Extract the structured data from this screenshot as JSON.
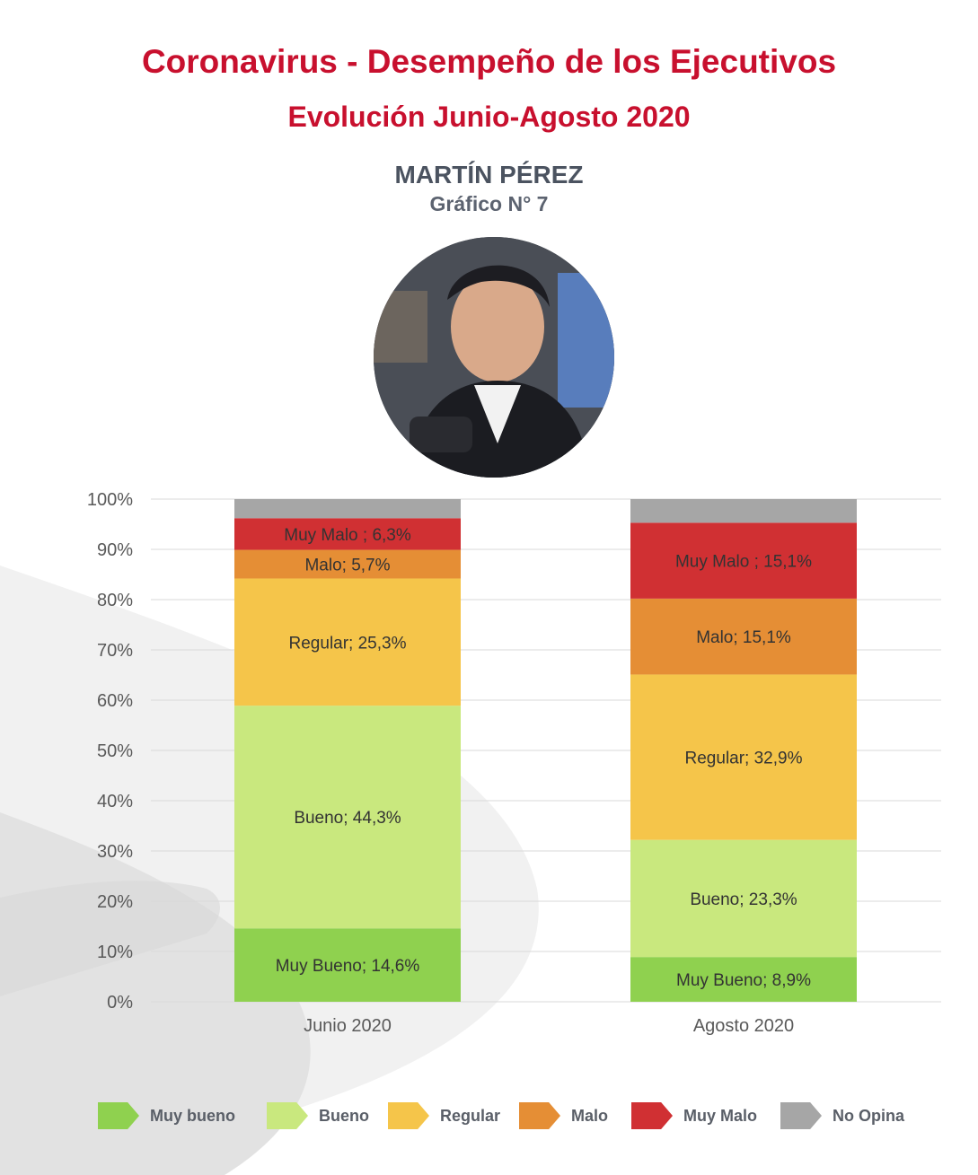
{
  "header": {
    "title": "Coronavirus - Desempeño de los Ejecutivos",
    "subtitle": "Evolución Junio-Agosto 2020",
    "person_name": "MARTÍN PÉREZ",
    "chart_number": "Gráfico N° 7"
  },
  "colors": {
    "title": "#c8102e",
    "muy_bueno": "#8fd14f",
    "bueno": "#c9e87e",
    "regular": "#f5c54a",
    "malo": "#e58e35",
    "muy_malo": "#d03033",
    "no_opina": "#a6a6a6"
  },
  "legend": [
    {
      "label": "Muy bueno",
      "color": "#8fd14f"
    },
    {
      "label": "Bueno",
      "color": "#c9e87e"
    },
    {
      "label": "Regular",
      "color": "#f5c54a"
    },
    {
      "label": "Malo",
      "color": "#e58e35"
    },
    {
      "label": "Muy Malo",
      "color": "#d03033"
    },
    {
      "label": "No Opina",
      "color": "#a6a6a6"
    }
  ],
  "chart_data": {
    "type": "bar",
    "stacked": true,
    "categories": [
      "Junio 2020",
      "Agosto 2020"
    ],
    "ylim": [
      0,
      100
    ],
    "yticks": [
      "0%",
      "10%",
      "20%",
      "30%",
      "40%",
      "50%",
      "60%",
      "70%",
      "80%",
      "90%",
      "100%"
    ],
    "grid": true,
    "legend_position": "bottom",
    "series": [
      {
        "name": "Muy bueno",
        "color": "#8fd14f",
        "values": [
          14.6,
          8.9
        ],
        "labels": [
          "Muy Bueno; 14,6%",
          "Muy Bueno; 8,9%"
        ]
      },
      {
        "name": "Bueno",
        "color": "#c9e87e",
        "values": [
          44.3,
          23.3
        ],
        "labels": [
          "Bueno; 44,3%",
          "Bueno; 23,3%"
        ]
      },
      {
        "name": "Regular",
        "color": "#f5c54a",
        "values": [
          25.3,
          32.9
        ],
        "labels": [
          "Regular; 25,3%",
          "Regular; 32,9%"
        ]
      },
      {
        "name": "Malo",
        "color": "#e58e35",
        "values": [
          5.7,
          15.1
        ],
        "labels": [
          "Malo; 5,7%",
          "Malo; 15,1%"
        ]
      },
      {
        "name": "Muy Malo",
        "color": "#d03033",
        "values": [
          6.3,
          15.1
        ],
        "labels": [
          "Muy Malo ; 6,3%",
          "Muy Malo ; 15,1%"
        ]
      },
      {
        "name": "No Opina",
        "color": "#a6a6a6",
        "values": [
          3.8,
          4.7
        ],
        "labels": [
          "",
          ""
        ]
      }
    ]
  }
}
